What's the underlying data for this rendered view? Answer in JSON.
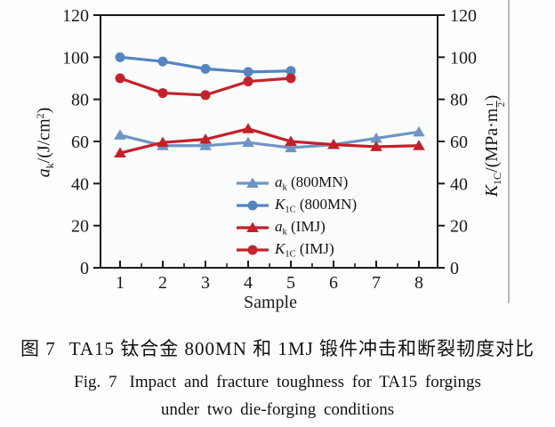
{
  "figure": {
    "caption_cn": {
      "label": "图 7",
      "text": "TA15 钛合金 800MN 和 1MJ 锻件冲击和断裂韧度对比"
    },
    "caption_en_line1": {
      "label": "Fig. 7",
      "text": "Impact and fracture toughness for TA15 forgings"
    },
    "caption_en_line2": "under two die-forging conditions"
  },
  "chart_data": {
    "type": "line",
    "title": "",
    "xlabel": "Sample",
    "x_ticks": [
      1,
      2,
      3,
      4,
      5,
      6,
      7,
      8
    ],
    "y_ticks": [
      0,
      20,
      40,
      60,
      80,
      100,
      120
    ],
    "ylim": [
      0,
      120
    ],
    "grid": "off",
    "legend_position": "inside lower right",
    "series": [
      {
        "name": "ak (800MN)",
        "marker": "triangle",
        "color": "#6f94c6",
        "x": [
          1,
          2,
          3,
          4,
          5,
          6,
          7,
          8
        ],
        "values": [
          63,
          58,
          58,
          59.5,
          57,
          58.5,
          61.5,
          64.5
        ]
      },
      {
        "name": "K1C (800MN)",
        "marker": "circle",
        "color": "#5584c2",
        "x": [
          1,
          2,
          3,
          4,
          5
        ],
        "values": [
          100,
          98,
          94.5,
          93,
          93.5
        ]
      },
      {
        "name": "ak (IMJ)",
        "marker": "triangle",
        "color": "#c3202a",
        "x": [
          1,
          2,
          3,
          4,
          5,
          6,
          7,
          8
        ],
        "values": [
          54.5,
          59.5,
          61,
          66,
          60,
          58.5,
          57.5,
          58
        ]
      },
      {
        "name": "K1C (IMJ)",
        "marker": "circle",
        "color": "#c4232c",
        "x": [
          1,
          2,
          3,
          4,
          5
        ],
        "values": [
          90,
          83,
          82,
          88.5,
          90
        ]
      }
    ],
    "legend": [
      {
        "var": "a",
        "sub": "k",
        "rest": "(800MN)",
        "series": 0
      },
      {
        "var": "K",
        "sub": "1C",
        "rest": "(800MN)",
        "series": 1
      },
      {
        "var": "a",
        "sub": "k",
        "rest": "(IMJ)",
        "series": 2
      },
      {
        "var": "K",
        "sub": "1C",
        "rest": "(IMJ)",
        "series": 3
      }
    ],
    "axis_labels": {
      "left": {
        "var": "a",
        "sub": "k",
        "unit_open": "/(J/cm",
        "sup": "2",
        "unit_close": ")"
      },
      "right": {
        "var": "K",
        "sub": "1C",
        "unit_open": "/(MPa·m",
        "frac_num": "1",
        "frac_den": "2",
        "unit_close": ")"
      },
      "x": "Sample"
    }
  }
}
